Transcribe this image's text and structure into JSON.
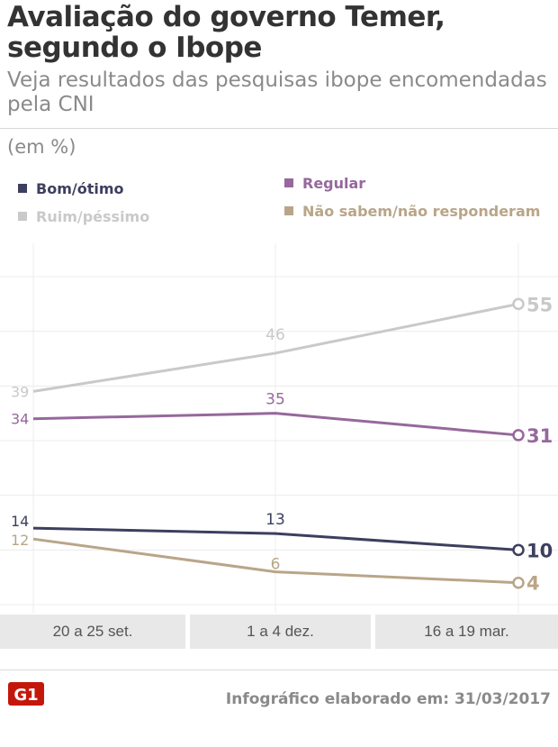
{
  "header": {
    "title": "Avaliação do governo Temer, segundo o Ibope",
    "subtitle": "Veja resultados das pesquisas ibope encomendadas pela CNI",
    "units": "(em %)"
  },
  "chart_data": {
    "type": "line",
    "title": "Avaliação do governo Temer, segundo o Ibope",
    "ylabel": "(em %)",
    "xlabel": "",
    "categories": [
      "20 a 25 set.",
      "1 a 4 dez.",
      "16 a 19 mar."
    ],
    "ylim": [
      0,
      60
    ],
    "grid": true,
    "series": [
      {
        "name": "Bom/ótimo",
        "color": "#3d3f5e",
        "values": [
          14,
          13,
          10
        ]
      },
      {
        "name": "Ruim/péssimo",
        "color": "#c9c9c9",
        "values": [
          39,
          46,
          55
        ]
      },
      {
        "name": "Regular",
        "color": "#96689c",
        "values": [
          34,
          35,
          31
        ]
      },
      {
        "name": "Não sabem/não responderam",
        "color": "#b9a588",
        "values": [
          12,
          6,
          4
        ]
      }
    ]
  },
  "footer": {
    "logo": "G1",
    "text": "Infográfico elaborado em: 31/03/2017"
  }
}
